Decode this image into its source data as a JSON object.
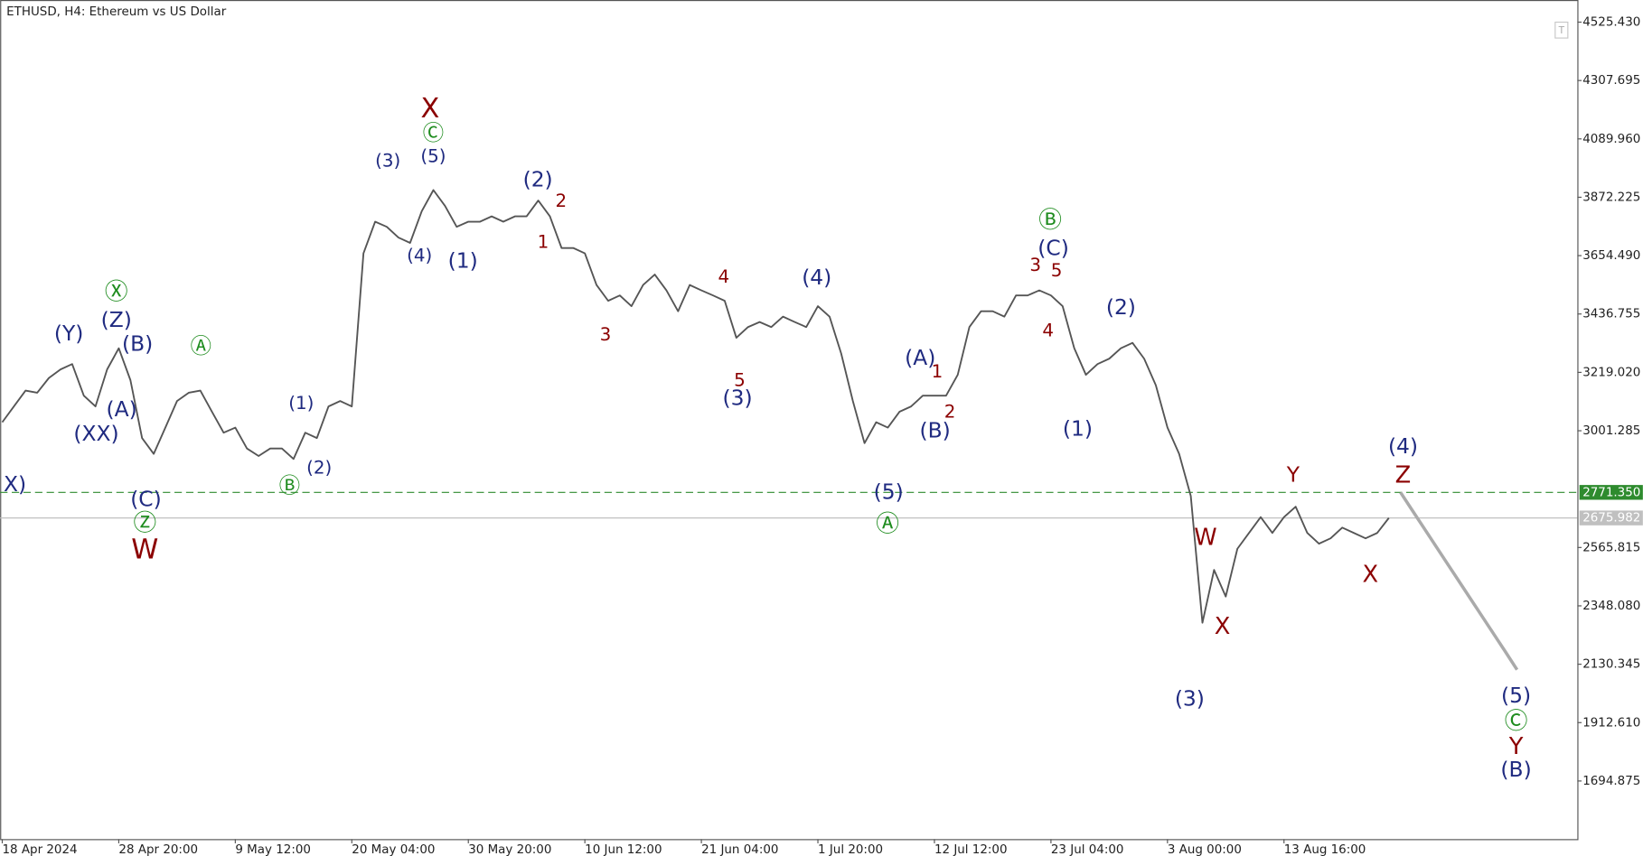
{
  "chart_data": {
    "type": "line",
    "title": "ETHUSD, H4:  Ethereum vs US Dollar",
    "categories": [
      "18 Apr 2024",
      null,
      null,
      null,
      null,
      null,
      null,
      null,
      null,
      null,
      "28 Apr 20:00",
      null,
      null,
      null,
      null,
      null,
      null,
      null,
      null,
      null,
      "9 May 12:00",
      null,
      null,
      null,
      null,
      null,
      null,
      null,
      null,
      null,
      "20 May 04:00",
      null,
      null,
      null,
      null,
      null,
      null,
      null,
      null,
      null,
      "30 May 20:00",
      null,
      null,
      null,
      null,
      null,
      null,
      null,
      null,
      null,
      "10 Jun 12:00",
      null,
      null,
      null,
      null,
      null,
      null,
      null,
      null,
      null,
      "21 Jun 04:00",
      null,
      null,
      null,
      null,
      null,
      null,
      null,
      null,
      null,
      "1 Jul 20:00",
      null,
      null,
      null,
      null,
      null,
      null,
      null,
      null,
      null,
      "12 Jul 12:00",
      null,
      null,
      null,
      null,
      null,
      null,
      null,
      null,
      null,
      "23 Jul 04:00",
      null,
      null,
      null,
      null,
      null,
      null,
      null,
      null,
      null,
      "3 Aug 00:00",
      null,
      null,
      null,
      null,
      null,
      null,
      null,
      null,
      null,
      "13 Aug 16:00",
      null,
      null,
      null,
      null,
      null,
      null,
      null,
      null,
      null,
      null,
      null,
      null,
      null,
      null,
      null,
      null,
      null,
      null,
      null,
      null,
      null,
      null,
      null,
      null,
      null
    ],
    "series": [
      {
        "color": "#555555",
        "values": [
          3033,
          3092,
          3151,
          3143,
          3198,
          3230,
          3250,
          3132,
          3092,
          3230,
          3309,
          3190,
          2974,
          2915,
          3013,
          3112,
          3143,
          3151,
          3072,
          2994,
          3013,
          2935,
          2907,
          2935,
          2935,
          2896,
          2994,
          2974,
          3092,
          3112,
          3092,
          3663,
          3781,
          3762,
          3722,
          3702,
          3820,
          3899,
          3840,
          3762,
          3781,
          3781,
          3801,
          3781,
          3801,
          3801,
          3860,
          3801,
          3683,
          3683,
          3663,
          3545,
          3486,
          3506,
          3466,
          3545,
          3584,
          3525,
          3447,
          3545,
          3525,
          3506,
          3486,
          3348,
          3388,
          3407,
          3388,
          3427,
          3407,
          3388,
          3466,
          3427,
          3289,
          3112,
          2955,
          3033,
          3013,
          3072,
          3092,
          3132,
          3132,
          3132,
          3210,
          3388,
          3447,
          3447,
          3427,
          3506,
          3506,
          3525,
          3506,
          3466,
          3309,
          3210,
          3250,
          3270,
          3309,
          3329,
          3270,
          3171,
          3013,
          2915,
          2758,
          2285,
          2482,
          2383,
          2561,
          2620,
          2679,
          2620,
          2679,
          2718,
          2620,
          2580,
          2600,
          2640,
          2620,
          2600,
          2620,
          2676,
          null,
          null,
          null,
          null,
          null,
          null,
          null,
          null,
          null,
          null,
          null,
          null,
          null,
          null,
          null,
          null
        ]
      },
      {
        "color": "#aaaaaa",
        "values": [
          null,
          null,
          null,
          null,
          null,
          null,
          null,
          null,
          null,
          null,
          null,
          null,
          null,
          null,
          null,
          null,
          null,
          null,
          null,
          null,
          null,
          null,
          null,
          null,
          null,
          null,
          null,
          null,
          null,
          null,
          null,
          null,
          null,
          null,
          null,
          null,
          null,
          null,
          null,
          null,
          null,
          null,
          null,
          null,
          null,
          null,
          null,
          null,
          null,
          null,
          null,
          null,
          null,
          null,
          null,
          null,
          null,
          null,
          null,
          null,
          null,
          null,
          null,
          null,
          null,
          null,
          null,
          null,
          null,
          null,
          null,
          null,
          null,
          null,
          null,
          null,
          null,
          null,
          null,
          null,
          null,
          null,
          null,
          null,
          null,
          null,
          null,
          null,
          null,
          null,
          null,
          null,
          null,
          null,
          null,
          null,
          null,
          null,
          null,
          null,
          null,
          null,
          null,
          null,
          null,
          null,
          null,
          null,
          null,
          null,
          null,
          null,
          null,
          null,
          null,
          null,
          null,
          null,
          null,
          null,
          2771.35,
          2705,
          2639,
          2573,
          2507,
          2441,
          2375,
          2309,
          2243,
          2177,
          2110,
          null,
          null,
          null,
          null,
          null
        ]
      }
    ],
    "ylim": [
      1478,
      4608
    ],
    "yticks": [
      {
        "value": 4525.43,
        "label": "4525.430"
      },
      4307.695,
      {
        "value": 4089.96,
        "label": "4089.960"
      },
      3872.225,
      {
        "value": 3654.49,
        "label": "3654.490"
      },
      3436.755,
      {
        "value": 3219.02,
        "label": "3219.020"
      },
      3001.285,
      2565.815,
      {
        "value": 2348.08,
        "label": "2348.080"
      },
      2130.345,
      {
        "value": 1912.61,
        "label": "1912.610"
      },
      1694.875
    ],
    "hlines": [
      {
        "value": 2771.35,
        "label": "2771.350",
        "color": "#2e8b2e",
        "style": "dashed"
      },
      {
        "value": 2675.982,
        "label": "2675.982",
        "color": "#c0c0c0",
        "style": "solid"
      }
    ],
    "annotations": [
      {
        "text": "X)",
        "color": "#1f2a80"
      },
      {
        "text": "(Y)",
        "color": "#1f2a80"
      },
      {
        "text": "Ⓧ",
        "color": "#1e8c1e"
      },
      {
        "text": "(Z)",
        "color": "#1f2a80"
      },
      {
        "text": "(B)",
        "color": "#1f2a80"
      },
      {
        "text": "(A)",
        "color": "#1f2a80"
      },
      {
        "text": "(XX)",
        "color": "#1f2a80"
      },
      {
        "text": "(C)",
        "color": "#1f2a80"
      },
      {
        "text": "Ⓩ",
        "color": "#1e8c1e"
      },
      {
        "text": "W",
        "color": "#8b0000"
      },
      {
        "text": "Ⓐ",
        "color": "#1e8c1e"
      },
      {
        "text": "(1)",
        "color": "#1f2a80"
      },
      {
        "text": "(2)",
        "color": "#1f2a80"
      },
      {
        "text": "Ⓑ",
        "color": "#1e8c1e"
      },
      {
        "text": "X",
        "color": "#8b0000"
      },
      {
        "text": "Ⓒ",
        "color": "#1e8c1e"
      },
      {
        "text": "(3)",
        "color": "#1f2a80"
      },
      {
        "text": "(5)",
        "color": "#1f2a80"
      },
      {
        "text": "(4)",
        "color": "#1f2a80"
      },
      {
        "text": "(1)",
        "color": "#1f2a80"
      },
      {
        "text": "(2)",
        "color": "#1f2a80"
      },
      {
        "text": "2",
        "color": "#8b0000"
      },
      {
        "text": "1",
        "color": "#8b0000"
      },
      {
        "text": "3",
        "color": "#8b0000"
      },
      {
        "text": "4",
        "color": "#8b0000"
      },
      {
        "text": "5",
        "color": "#8b0000"
      },
      {
        "text": "(3)",
        "color": "#1f2a80"
      },
      {
        "text": "(4)",
        "color": "#1f2a80"
      },
      {
        "text": "(5)",
        "color": "#1f2a80"
      },
      {
        "text": "Ⓐ",
        "color": "#1e8c1e"
      },
      {
        "text": "(A)",
        "color": "#1f2a80"
      },
      {
        "text": "1",
        "color": "#8b0000"
      },
      {
        "text": "2",
        "color": "#8b0000"
      },
      {
        "text": "(B)",
        "color": "#1f2a80"
      },
      {
        "text": "Ⓑ",
        "color": "#1e8c1e"
      },
      {
        "text": "(C)",
        "color": "#1f2a80"
      },
      {
        "text": "3",
        "color": "#8b0000"
      },
      {
        "text": "5",
        "color": "#8b0000"
      },
      {
        "text": "4",
        "color": "#8b0000"
      },
      {
        "text": "(2)",
        "color": "#1f2a80"
      },
      {
        "text": "(1)",
        "color": "#1f2a80"
      },
      {
        "text": "(3)",
        "color": "#1f2a80"
      },
      {
        "text": "W",
        "color": "#8b0000"
      },
      {
        "text": "X",
        "color": "#8b0000"
      },
      {
        "text": "Y",
        "color": "#8b0000"
      },
      {
        "text": "X",
        "color": "#8b0000"
      },
      {
        "text": "(4)",
        "color": "#1f2a80"
      },
      {
        "text": "Z",
        "color": "#8b0000"
      },
      {
        "text": "(5)",
        "color": "#1f2a80"
      },
      {
        "text": "Ⓒ",
        "color": "#1e8c1e"
      },
      {
        "text": "Y",
        "color": "#8b0000"
      },
      {
        "text": "(B)",
        "color": "#1f2a80"
      }
    ]
  }
}
